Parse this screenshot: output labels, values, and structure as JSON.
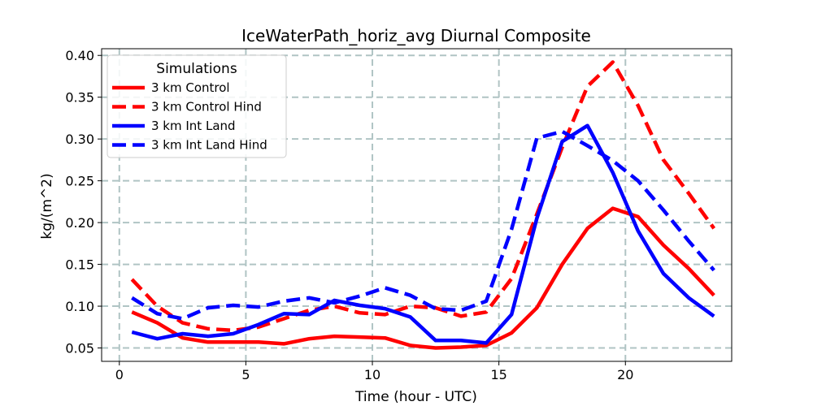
{
  "chart_data": {
    "type": "line",
    "title": "IceWaterPath_horiz_avg Diurnal Composite",
    "xlabel": "Time (hour - UTC)",
    "ylabel": "kg/(m^2)",
    "xlim": [
      -0.7,
      24.2
    ],
    "ylim": [
      0.034,
      0.408
    ],
    "xticks": [
      0,
      5,
      10,
      15,
      20
    ],
    "xtick_labels": [
      "0",
      "5",
      "10",
      "15",
      "20"
    ],
    "yticks": [
      0.05,
      0.1,
      0.15,
      0.2,
      0.25,
      0.3,
      0.35,
      0.4
    ],
    "ytick_labels": [
      "0.05",
      "0.10",
      "0.15",
      "0.20",
      "0.25",
      "0.30",
      "0.35",
      "0.40"
    ],
    "grid": true,
    "legend": {
      "title": "Simulations",
      "placement": "upper-left"
    },
    "x": [
      0.5,
      1.5,
      2.5,
      3.5,
      4.5,
      5.5,
      6.5,
      7.5,
      8.5,
      9.5,
      10.5,
      11.5,
      12.5,
      13.5,
      14.5,
      15.5,
      16.5,
      17.5,
      18.5,
      19.5,
      20.5,
      21.5,
      22.5,
      23.5
    ],
    "series": [
      {
        "name": "3 km Control",
        "color": "#ff0000",
        "style": "solid",
        "values": [
          0.093,
          0.08,
          0.062,
          0.057,
          0.057,
          0.057,
          0.055,
          0.061,
          0.064,
          0.063,
          0.062,
          0.053,
          0.05,
          0.051,
          0.053,
          0.068,
          0.098,
          0.15,
          0.193,
          0.217,
          0.207,
          0.173,
          0.145,
          0.113
        ]
      },
      {
        "name": "3 km Control Hind",
        "color": "#ff0000",
        "style": "dashed",
        "values": [
          0.132,
          0.1,
          0.08,
          0.073,
          0.071,
          0.075,
          0.085,
          0.095,
          0.1,
          0.092,
          0.09,
          0.1,
          0.098,
          0.088,
          0.093,
          0.133,
          0.21,
          0.29,
          0.363,
          0.392,
          0.34,
          0.275,
          0.235,
          0.193
        ]
      },
      {
        "name": "3 km Int Land",
        "color": "#0000ff",
        "style": "solid",
        "values": [
          0.069,
          0.061,
          0.067,
          0.064,
          0.067,
          0.078,
          0.091,
          0.09,
          0.107,
          0.101,
          0.097,
          0.087,
          0.059,
          0.059,
          0.056,
          0.09,
          0.205,
          0.297,
          0.316,
          0.26,
          0.19,
          0.139,
          0.11,
          0.088
        ]
      },
      {
        "name": "3 km Int Land Hind",
        "color": "#0000ff",
        "style": "dashed",
        "values": [
          0.11,
          0.091,
          0.085,
          0.098,
          0.101,
          0.099,
          0.106,
          0.11,
          0.104,
          0.112,
          0.122,
          0.113,
          0.097,
          0.095,
          0.106,
          0.192,
          0.301,
          0.309,
          0.292,
          0.274,
          0.25,
          0.215,
          0.178,
          0.143
        ]
      }
    ]
  }
}
